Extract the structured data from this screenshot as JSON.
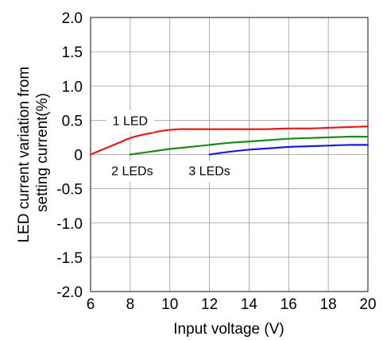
{
  "chart_data": {
    "type": "line",
    "xlabel": "Input voltage (V)",
    "ylabel_lines": [
      "LED current variation from",
      "setting current(%)"
    ],
    "xlim": [
      6,
      20
    ],
    "ylim": [
      -2.0,
      2.0
    ],
    "x_ticks": [
      6,
      8,
      10,
      12,
      14,
      16,
      18,
      20
    ],
    "x_tick_labels": [
      "6",
      "8",
      "10",
      "12",
      "14",
      "16",
      "18",
      "20"
    ],
    "y_ticks": [
      2.0,
      1.5,
      1.0,
      0.5,
      0,
      -0.5,
      -1.0,
      -1.5,
      -2.0
    ],
    "y_tick_labels": [
      "2.0",
      "1.5",
      "1.0",
      "0.5",
      "0",
      "-0.5",
      "-1.0",
      "-1.5",
      "-2.0"
    ],
    "grid": true,
    "series": [
      {
        "name": "1 LED",
        "color": "#e8191b",
        "x": [
          6,
          6.5,
          7,
          7.5,
          8,
          8.5,
          9,
          9.5,
          10,
          10.5,
          11,
          12,
          13,
          14,
          15,
          16,
          17,
          18,
          19,
          20
        ],
        "y": [
          0.0,
          0.06,
          0.12,
          0.18,
          0.24,
          0.28,
          0.31,
          0.34,
          0.36,
          0.37,
          0.37,
          0.37,
          0.37,
          0.37,
          0.37,
          0.38,
          0.38,
          0.39,
          0.4,
          0.41
        ]
      },
      {
        "name": "2 LEDs",
        "color": "#1b8a1b",
        "x": [
          8,
          9,
          10,
          11,
          12,
          13,
          14,
          15,
          16,
          17,
          18,
          19,
          20
        ],
        "y": [
          0.0,
          0.04,
          0.08,
          0.11,
          0.14,
          0.17,
          0.19,
          0.21,
          0.23,
          0.24,
          0.25,
          0.26,
          0.26
        ]
      },
      {
        "name": "3 LEDs",
        "color": "#1a1ad8",
        "x": [
          12,
          13,
          14,
          15,
          16,
          17,
          18,
          19,
          20
        ],
        "y": [
          0.0,
          0.04,
          0.07,
          0.09,
          0.11,
          0.12,
          0.13,
          0.14,
          0.14
        ]
      }
    ],
    "annotations": [
      {
        "series": "1 LED",
        "text": "1 LED",
        "x": 8.0,
        "y": 0.48
      },
      {
        "series": "2 LEDs",
        "text": "2 LEDs",
        "x": 8.1,
        "y": -0.25
      },
      {
        "series": "3 LEDs",
        "text": "3 LEDs",
        "x": 12.0,
        "y": -0.25
      }
    ]
  }
}
